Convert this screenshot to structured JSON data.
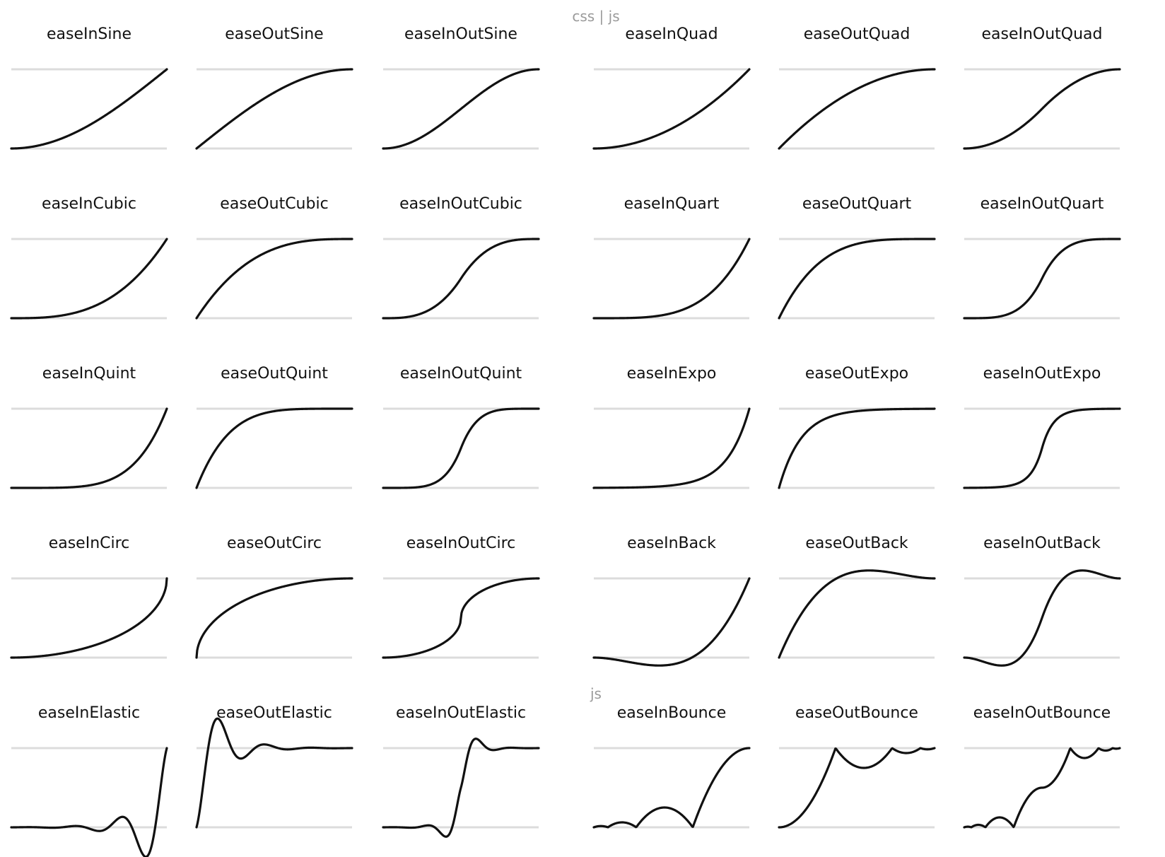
{
  "section_labels": {
    "top": "css | js",
    "bottom": "js"
  },
  "colors": {
    "curve": "#111111",
    "guide": "#dcdcdc",
    "title": "#111111",
    "section_label": "#9a9a9a",
    "background": "#ffffff"
  },
  "chart_data": {
    "type": "line",
    "grid": false,
    "xlim": [
      0,
      1
    ],
    "rows": 5,
    "columns": 6,
    "functions": [
      "easeInSine",
      "easeOutSine",
      "easeInOutSine",
      "easeInQuad",
      "easeOutQuad",
      "easeInOutQuad",
      "easeInCubic",
      "easeOutCubic",
      "easeInOutCubic",
      "easeInQuart",
      "easeOutQuart",
      "easeInOutQuart",
      "easeInQuint",
      "easeOutQuint",
      "easeInOutQuint",
      "easeInExpo",
      "easeOutExpo",
      "easeInOutExpo",
      "easeInCirc",
      "easeOutCirc",
      "easeInOutCirc",
      "easeInBack",
      "easeOutBack",
      "easeInOutBack",
      "easeInElastic",
      "easeOutElastic",
      "easeInOutElastic",
      "easeInBounce",
      "easeOutBounce",
      "easeInOutBounce"
    ]
  }
}
